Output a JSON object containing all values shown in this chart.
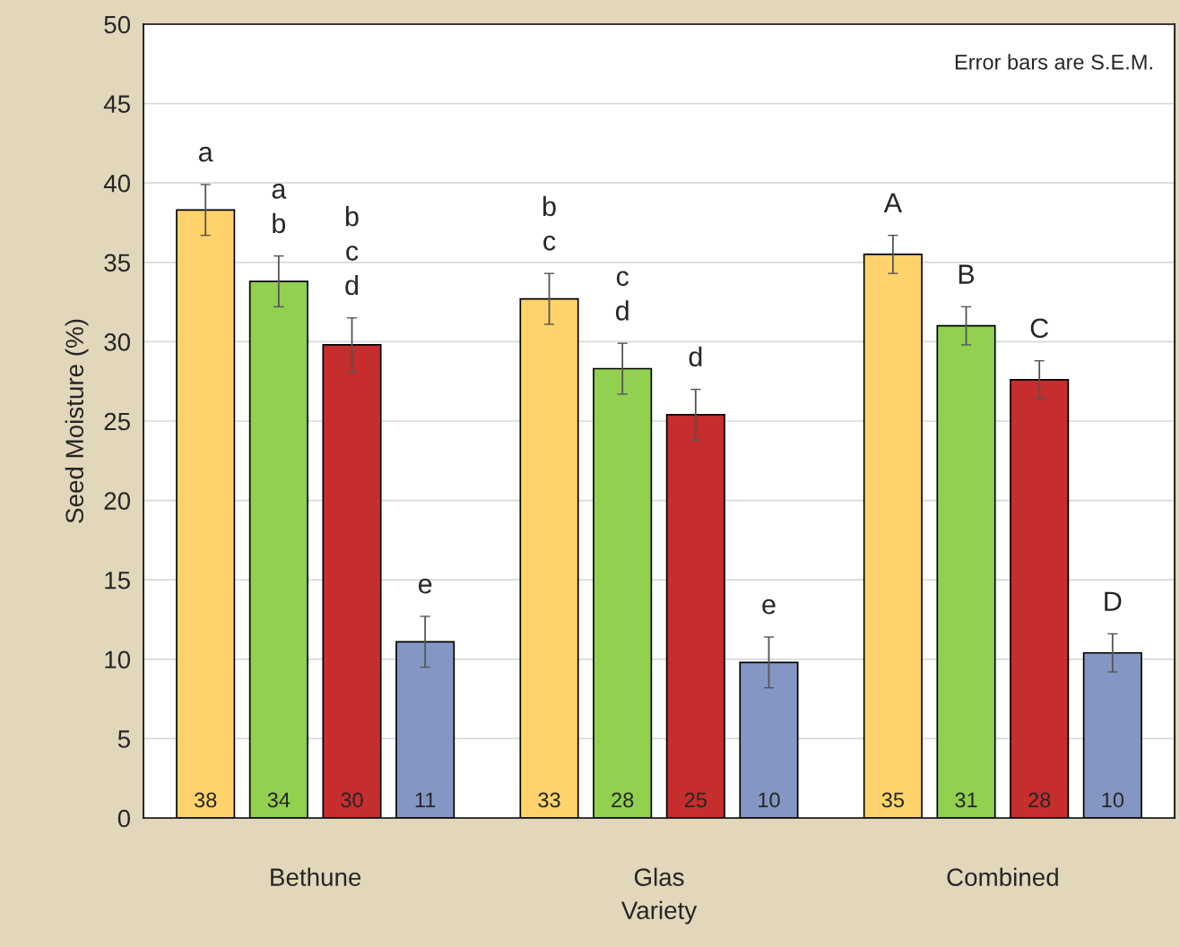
{
  "chart_data": {
    "type": "bar",
    "xlabel": "Variety",
    "ylabel": "Seed Moisture (%)",
    "categories": [
      "Bethune",
      "Glas",
      "Combined"
    ],
    "series": [
      {
        "color": "#ffd36b",
        "values": [
          38.3,
          32.7,
          35.5
        ],
        "errors": [
          1.6,
          1.6,
          1.2
        ],
        "value_labels": [
          "38",
          "33",
          "35"
        ]
      },
      {
        "color": "#92d050",
        "values": [
          33.8,
          28.3,
          31.0
        ],
        "errors": [
          1.6,
          1.6,
          1.2
        ],
        "value_labels": [
          "34",
          "28",
          "31"
        ]
      },
      {
        "color": "#c62d2d",
        "values": [
          29.8,
          25.4,
          27.6
        ],
        "errors": [
          1.7,
          1.6,
          1.2
        ],
        "value_labels": [
          "30",
          "25",
          "28"
        ]
      },
      {
        "color": "#8497c4",
        "values": [
          11.1,
          9.8,
          10.4
        ],
        "errors": [
          1.6,
          1.6,
          1.2
        ],
        "value_labels": [
          "11",
          "10",
          "10"
        ]
      }
    ],
    "ylim": [
      0,
      50
    ],
    "yticks": [
      0,
      5,
      10,
      15,
      20,
      25,
      30,
      35,
      40,
      45,
      50
    ],
    "grid": "y",
    "legend": false,
    "annotations": [
      "a",
      "a\nb",
      "b\nc\nd",
      "e",
      "b\nc",
      "c\nd",
      "d",
      "e",
      "A",
      "B",
      "C",
      "D",
      "Error bars are S.E.M."
    ]
  }
}
